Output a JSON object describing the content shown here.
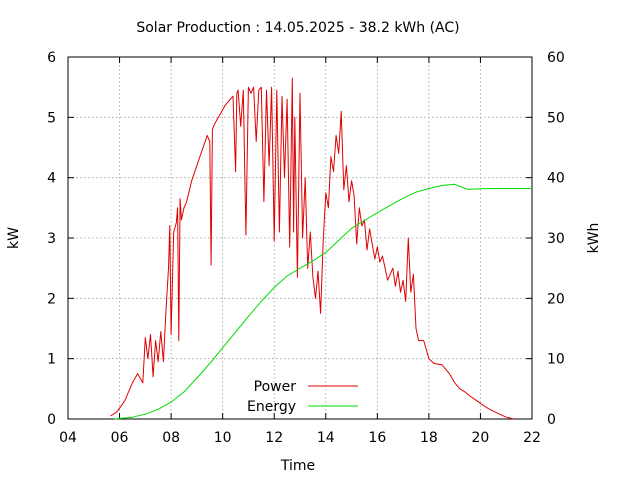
{
  "chart_data": {
    "type": "line",
    "title": "Solar Production : 14.05.2025 - 38.2 kWh (AC)",
    "xlabel": "Time",
    "ylabel": "kW",
    "y2label": "kWh",
    "xlim": [
      4,
      22
    ],
    "ylim": [
      0,
      6
    ],
    "y2lim": [
      0,
      60
    ],
    "xticks": [
      "04",
      "06",
      "08",
      "10",
      "12",
      "14",
      "16",
      "18",
      "20",
      "22"
    ],
    "yticks": [
      "0",
      "1",
      "2",
      "3",
      "4",
      "5",
      "6"
    ],
    "y2ticks": [
      "0",
      "10",
      "20",
      "30",
      "40",
      "50",
      "60"
    ],
    "grid": true,
    "legend_position": "bottom-center",
    "series": [
      {
        "name": "Power",
        "axis": "left",
        "color": "#e00000",
        "x": [
          5.65,
          5.9,
          6.2,
          6.5,
          6.7,
          6.9,
          7.0,
          7.1,
          7.2,
          7.3,
          7.4,
          7.5,
          7.6,
          7.7,
          7.8,
          7.9,
          7.95,
          8.0,
          8.1,
          8.2,
          8.25,
          8.3,
          8.35,
          8.4,
          8.5,
          8.6,
          8.8,
          9.0,
          9.2,
          9.4,
          9.5,
          9.55,
          9.6,
          9.7,
          9.9,
          10.1,
          10.3,
          10.4,
          10.5,
          10.55,
          10.6,
          10.7,
          10.8,
          10.9,
          11.0,
          11.1,
          11.2,
          11.3,
          11.4,
          11.5,
          11.6,
          11.7,
          11.8,
          11.9,
          12.0,
          12.1,
          12.2,
          12.3,
          12.4,
          12.5,
          12.6,
          12.7,
          12.75,
          12.8,
          12.9,
          13.0,
          13.1,
          13.2,
          13.3,
          13.4,
          13.5,
          13.6,
          13.7,
          13.8,
          13.9,
          14.0,
          14.1,
          14.2,
          14.3,
          14.4,
          14.5,
          14.6,
          14.7,
          14.8,
          14.9,
          15.0,
          15.1,
          15.2,
          15.3,
          15.4,
          15.5,
          15.6,
          15.7,
          15.8,
          15.9,
          16.0,
          16.1,
          16.2,
          16.3,
          16.4,
          16.5,
          16.6,
          16.7,
          16.8,
          16.9,
          17.0,
          17.1,
          17.2,
          17.3,
          17.4,
          17.5,
          17.6,
          17.8,
          18.0,
          18.2,
          18.5,
          18.8,
          19.0,
          19.2,
          19.4,
          19.6,
          19.8,
          20.0,
          20.2,
          20.4,
          20.6,
          20.8,
          21.0,
          21.2,
          21.3
        ],
        "values": [
          0.05,
          0.12,
          0.3,
          0.6,
          0.75,
          0.6,
          1.35,
          1.0,
          1.4,
          0.7,
          1.3,
          0.95,
          1.45,
          0.95,
          1.8,
          2.5,
          3.2,
          1.4,
          3.1,
          3.25,
          3.5,
          1.3,
          3.65,
          3.3,
          3.5,
          3.6,
          3.95,
          4.2,
          4.45,
          4.7,
          4.6,
          2.55,
          4.8,
          4.9,
          5.05,
          5.2,
          5.3,
          5.35,
          4.1,
          5.4,
          5.45,
          4.85,
          5.45,
          3.05,
          5.5,
          5.4,
          5.5,
          4.6,
          5.45,
          5.5,
          3.6,
          5.45,
          4.2,
          5.5,
          2.95,
          5.45,
          3.1,
          5.35,
          4.0,
          5.3,
          2.85,
          5.65,
          3.1,
          5.0,
          2.35,
          5.4,
          3.0,
          4.0,
          2.5,
          3.1,
          2.35,
          2.0,
          2.45,
          1.75,
          2.95,
          3.75,
          3.5,
          4.35,
          4.1,
          4.7,
          4.4,
          5.1,
          3.8,
          4.2,
          3.6,
          3.95,
          3.7,
          2.9,
          3.5,
          3.2,
          3.3,
          2.8,
          3.15,
          2.9,
          2.65,
          2.85,
          2.6,
          2.7,
          2.5,
          2.3,
          2.4,
          2.5,
          2.2,
          2.45,
          2.1,
          2.3,
          1.95,
          3.0,
          2.1,
          2.4,
          1.5,
          1.3,
          1.3,
          1.0,
          0.92,
          0.9,
          0.75,
          0.6,
          0.5,
          0.45,
          0.38,
          0.32,
          0.26,
          0.2,
          0.15,
          0.11,
          0.07,
          0.03,
          0.01,
          0.0
        ]
      },
      {
        "name": "Energy",
        "axis": "right",
        "color": "#00dd00",
        "x": [
          5.8,
          6.5,
          7.0,
          7.5,
          8.0,
          8.5,
          9.0,
          9.5,
          10.0,
          10.5,
          11.0,
          11.5,
          12.0,
          12.5,
          13.0,
          13.5,
          14.0,
          14.5,
          15.0,
          15.5,
          16.0,
          16.5,
          17.0,
          17.5,
          18.0,
          18.5,
          19.0,
          19.5,
          20.0,
          20.5,
          21.0,
          22.0
        ],
        "values": [
          0.0,
          0.3,
          0.8,
          1.6,
          2.8,
          4.5,
          6.8,
          9.2,
          11.8,
          14.4,
          17.0,
          19.5,
          21.8,
          23.7,
          25.0,
          26.2,
          27.6,
          29.6,
          31.6,
          32.9,
          34.2,
          35.4,
          36.6,
          37.6,
          38.2,
          38.7,
          38.9,
          38.05,
          38.15,
          38.2,
          38.2,
          38.2
        ]
      }
    ]
  }
}
